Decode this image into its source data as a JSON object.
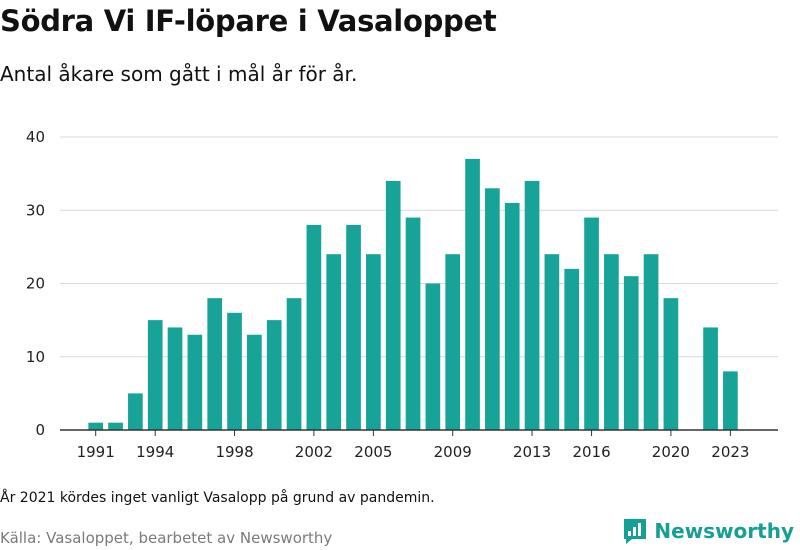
{
  "header": {
    "title": "Södra Vi IF-löpare i Vasaloppet",
    "subtitle": "Antal åkare som gått i mål år för år."
  },
  "footer": {
    "note": "År 2021 kördes inget vanligt Vasalopp på grund av pandemin.",
    "source": "Källa: Vasaloppet, bearbetet av Newsworthy",
    "brand": "Newsworthy",
    "brand_icon": "newsworthy-logo-icon"
  },
  "colors": {
    "bar": "#17a398",
    "grid": "#d9d9d9",
    "axis": "#333333",
    "brand": "#159f95"
  },
  "chart_data": {
    "type": "bar",
    "title": "Södra Vi IF-löpare i Vasaloppet",
    "subtitle": "Antal åkare som gått i mål år för år.",
    "xlabel": "",
    "ylabel": "",
    "ylim": [
      0,
      40
    ],
    "yticks": [
      0,
      10,
      20,
      30,
      40
    ],
    "xlim": [
      1989.2,
      2025.4
    ],
    "xticks": [
      1991,
      1994,
      1998,
      2002,
      2005,
      2009,
      2013,
      2016,
      2020,
      2023
    ],
    "grid": true,
    "categories": [
      1991,
      1992,
      1993,
      1994,
      1995,
      1996,
      1997,
      1998,
      1999,
      2000,
      2001,
      2002,
      2003,
      2004,
      2005,
      2006,
      2007,
      2008,
      2009,
      2010,
      2011,
      2012,
      2013,
      2014,
      2015,
      2016,
      2017,
      2018,
      2019,
      2020,
      2021,
      2022,
      2023
    ],
    "values": [
      1,
      1,
      5,
      15,
      14,
      13,
      18,
      16,
      13,
      15,
      18,
      28,
      24,
      28,
      24,
      34,
      29,
      20,
      24,
      37,
      33,
      31,
      34,
      24,
      22,
      29,
      24,
      21,
      24,
      18,
      null,
      14,
      8
    ]
  }
}
